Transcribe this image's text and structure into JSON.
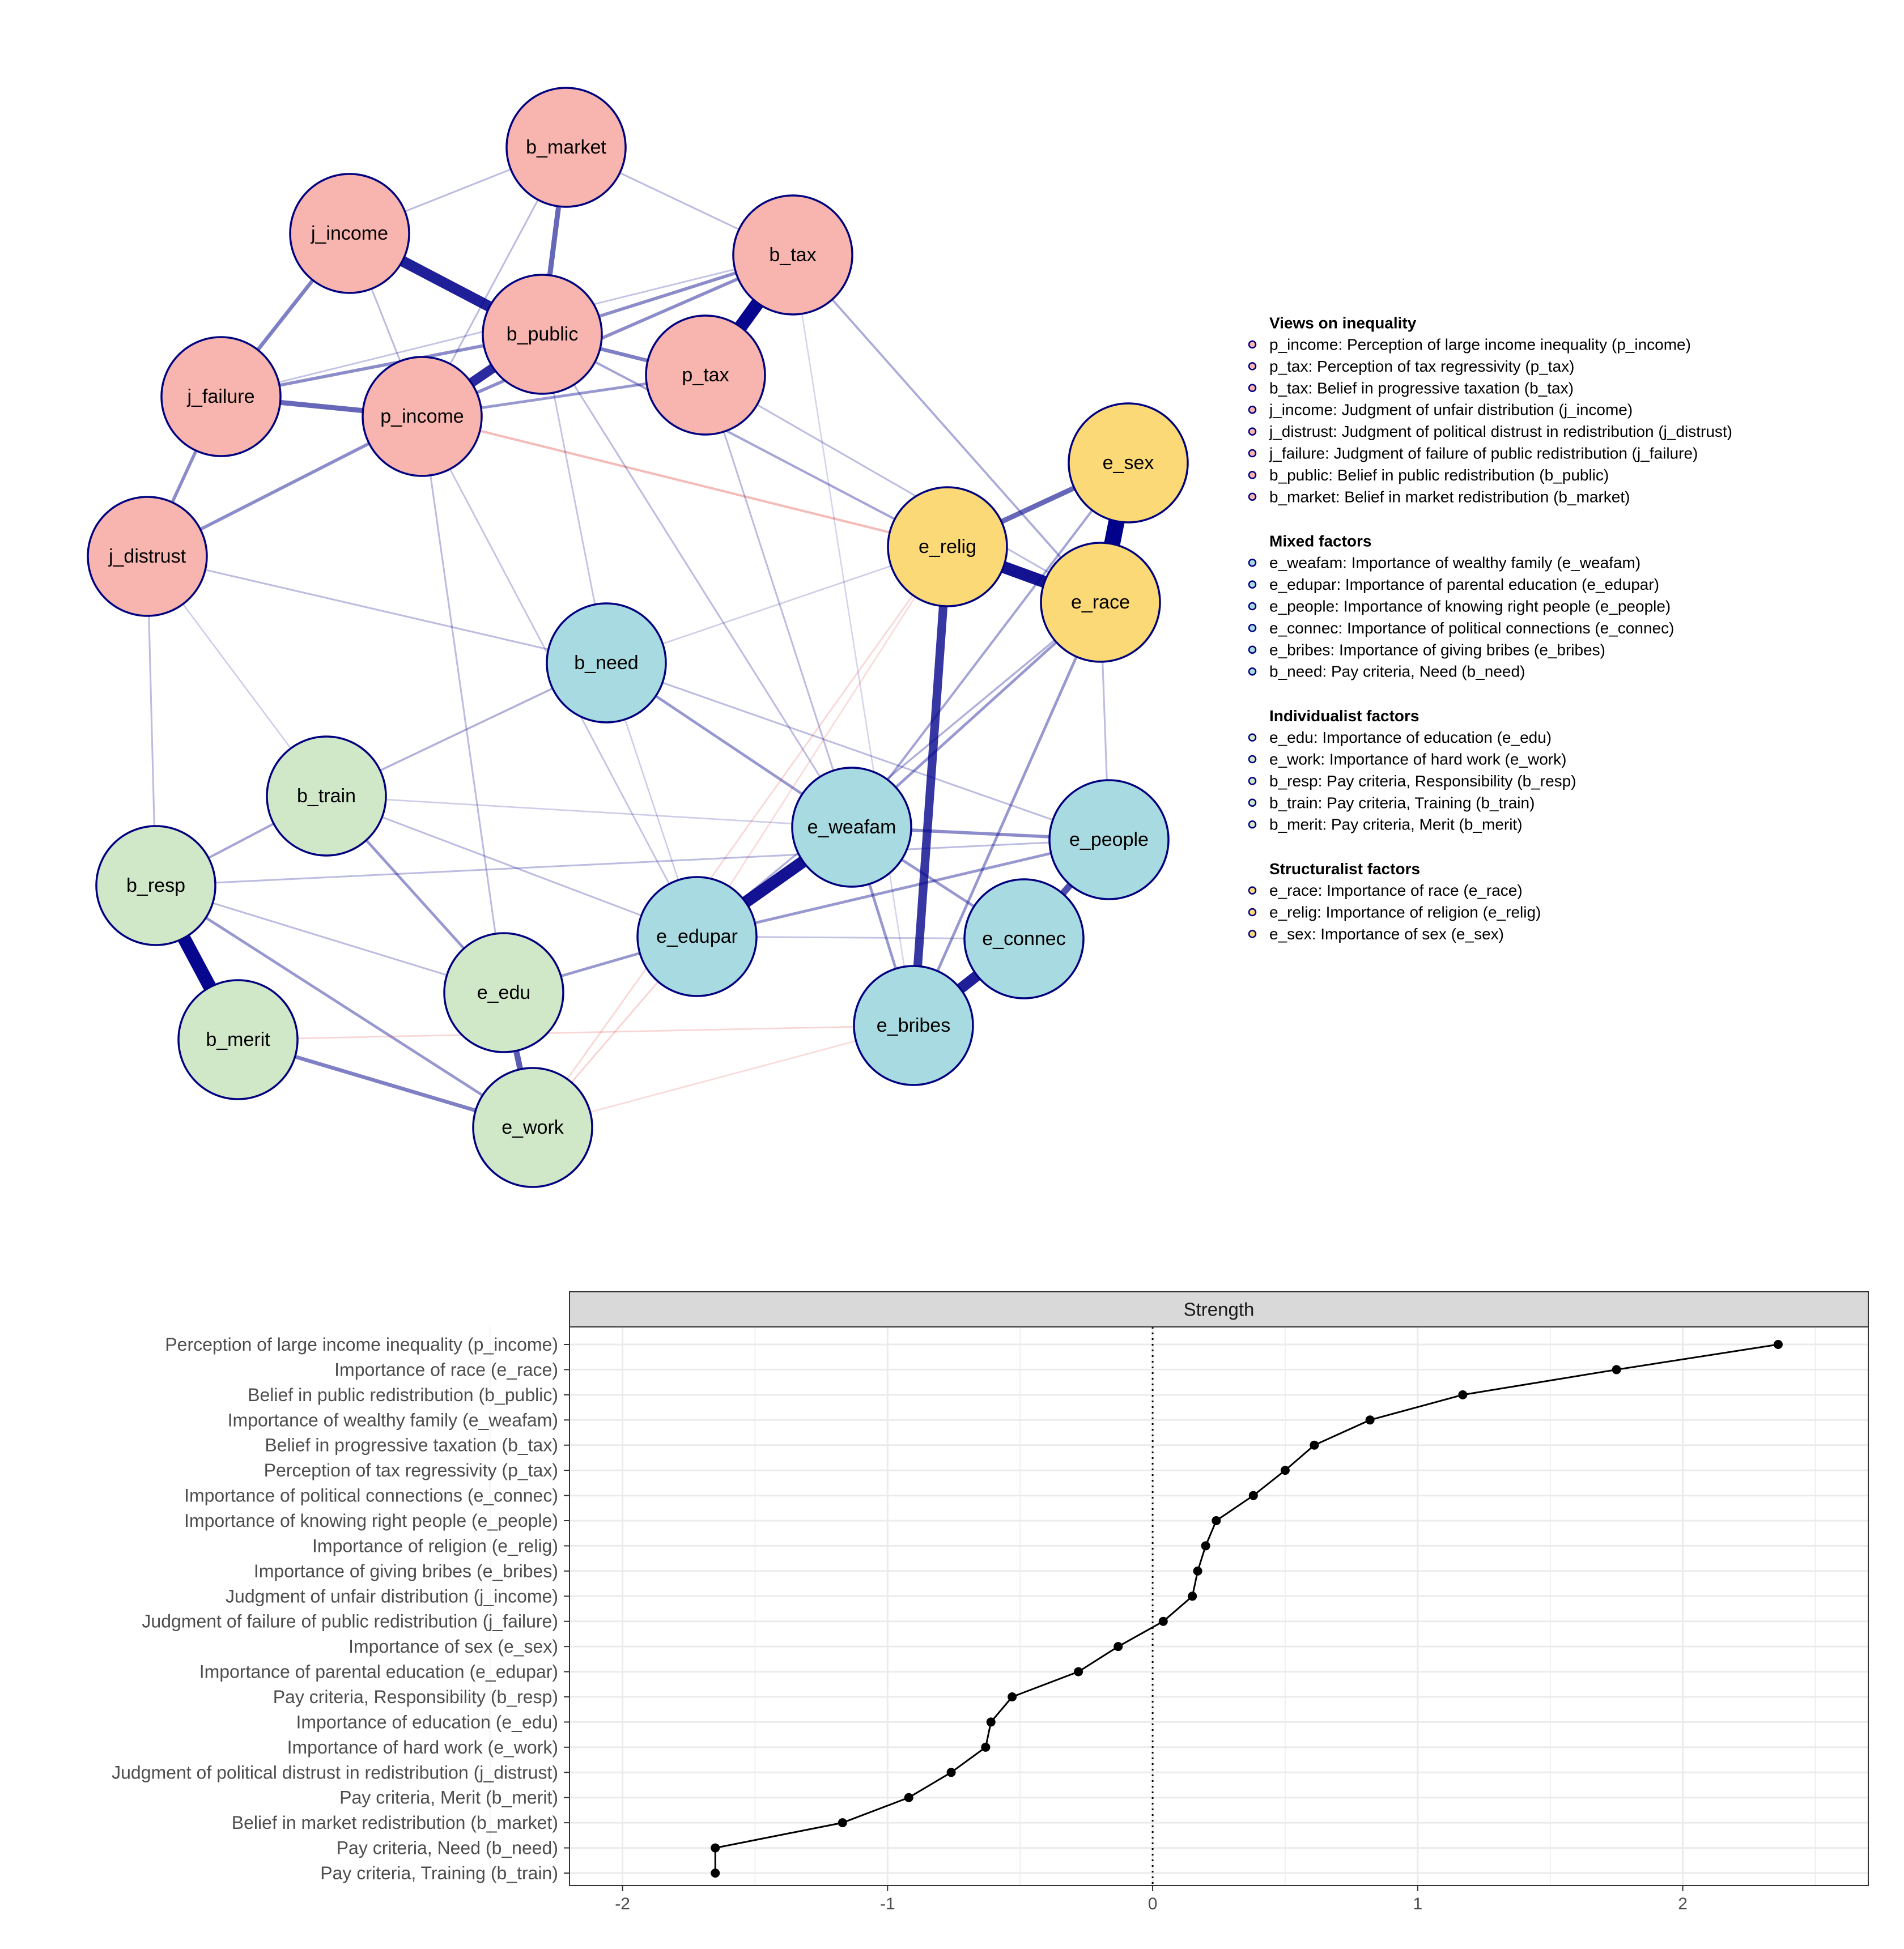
{
  "network": {
    "groups": [
      {
        "title": "Views on inequality",
        "color": "#F8B4AE",
        "items": [
          "p_income: Perception of large income inequality (p_income)",
          "p_tax: Perception of tax regressivity (p_tax)",
          "b_tax: Belief in progressive taxation (b_tax)",
          "j_income: Judgment of unfair distribution (j_income)",
          "j_distrust: Judgment of political distrust in redistribution (j_distrust)",
          "j_failure: Judgment of failure of public redistribution (j_failure)",
          "b_public: Belief in public redistribution (b_public)",
          "b_market: Belief in market redistribution (b_market)"
        ]
      },
      {
        "title": "Mixed factors",
        "color": "#A8DAE1",
        "items": [
          "e_weafam: Importance of wealthy family (e_weafam)",
          "e_edupar: Importance of parental education (e_edupar)",
          "e_people: Importance of knowing right people (e_people)",
          "e_connec: Importance of political connections (e_connec)",
          "e_bribes: Importance of giving bribes (e_bribes)",
          "b_need: Pay criteria, Need (b_need)"
        ]
      },
      {
        "title": "Individualist factors",
        "color": "#D0E8C8",
        "items": [
          "e_edu: Importance of education (e_edu)",
          "e_work: Importance of hard work (e_work)",
          "b_resp: Pay criteria, Responsibility (b_resp)",
          "b_train: Pay criteria, Training (b_train)",
          "b_merit: Pay criteria, Merit (b_merit)"
        ]
      },
      {
        "title": "Structuralist factors",
        "color": "#FBD976",
        "items": [
          "e_race: Importance of race (e_race)",
          "e_relig: Importance of religion (e_relig)",
          "e_sex: Importance of sex (e_sex)"
        ]
      }
    ],
    "nodes": [
      {
        "id": "b_market",
        "group": 0
      },
      {
        "id": "j_income",
        "group": 0
      },
      {
        "id": "b_tax",
        "group": 0
      },
      {
        "id": "b_public",
        "group": 0
      },
      {
        "id": "p_tax",
        "group": 0
      },
      {
        "id": "j_failure",
        "group": 0
      },
      {
        "id": "p_income",
        "group": 0
      },
      {
        "id": "j_distrust",
        "group": 0
      },
      {
        "id": "e_sex",
        "group": 3
      },
      {
        "id": "e_relig",
        "group": 3
      },
      {
        "id": "e_race",
        "group": 3
      },
      {
        "id": "b_need",
        "group": 1
      },
      {
        "id": "b_train",
        "group": 2
      },
      {
        "id": "e_weafam",
        "group": 1
      },
      {
        "id": "e_people",
        "group": 1
      },
      {
        "id": "b_resp",
        "group": 2
      },
      {
        "id": "e_edupar",
        "group": 1
      },
      {
        "id": "e_connec",
        "group": 1
      },
      {
        "id": "e_edu",
        "group": 2
      },
      {
        "id": "b_merit",
        "group": 2
      },
      {
        "id": "e_bribes",
        "group": 1
      },
      {
        "id": "e_work",
        "group": 2
      }
    ],
    "edges": [
      {
        "a": "j_income",
        "b": "b_public",
        "w": 0.8,
        "sign": "pos"
      },
      {
        "a": "b_public",
        "b": "p_income",
        "w": 0.75,
        "sign": "pos"
      },
      {
        "a": "b_tax",
        "b": "p_tax",
        "w": 0.9,
        "sign": "pos"
      },
      {
        "a": "e_sex",
        "b": "e_race",
        "w": 1.0,
        "sign": "pos"
      },
      {
        "a": "e_relig",
        "b": "e_race",
        "w": 0.85,
        "sign": "pos"
      },
      {
        "a": "e_relig",
        "b": "e_sex",
        "w": 0.5,
        "sign": "pos"
      },
      {
        "a": "e_relig",
        "b": "e_bribes",
        "w": 0.7,
        "sign": "pos"
      },
      {
        "a": "e_weafam",
        "b": "e_edupar",
        "w": 0.85,
        "sign": "pos"
      },
      {
        "a": "b_resp",
        "b": "b_merit",
        "w": 0.9,
        "sign": "pos"
      },
      {
        "a": "e_edu",
        "b": "e_work",
        "w": 0.55,
        "sign": "pos"
      },
      {
        "a": "e_connec",
        "b": "e_bribes",
        "w": 0.8,
        "sign": "pos"
      },
      {
        "a": "e_people",
        "b": "e_connec",
        "w": 0.6,
        "sign": "pos"
      },
      {
        "a": "b_market",
        "b": "b_public",
        "w": 0.5,
        "sign": "pos"
      },
      {
        "a": "j_failure",
        "b": "p_income",
        "w": 0.5,
        "sign": "pos"
      },
      {
        "a": "j_failure",
        "b": "b_public",
        "w": 0.35,
        "sign": "pos"
      },
      {
        "a": "b_public",
        "b": "p_tax",
        "w": 0.4,
        "sign": "pos"
      },
      {
        "a": "b_public",
        "b": "b_tax",
        "w": 0.35,
        "sign": "pos"
      },
      {
        "a": "j_income",
        "b": "j_failure",
        "w": 0.4,
        "sign": "pos"
      },
      {
        "a": "j_failure",
        "b": "j_distrust",
        "w": 0.35,
        "sign": "pos"
      },
      {
        "a": "j_distrust",
        "b": "p_income",
        "w": 0.35,
        "sign": "pos"
      },
      {
        "a": "p_income",
        "b": "b_tax",
        "w": 0.35,
        "sign": "pos"
      },
      {
        "a": "p_income",
        "b": "p_tax",
        "w": 0.3,
        "sign": "pos"
      },
      {
        "a": "b_merit",
        "b": "e_work",
        "w": 0.4,
        "sign": "pos"
      },
      {
        "a": "b_resp",
        "b": "e_work",
        "w": 0.3,
        "sign": "pos"
      },
      {
        "a": "e_edu",
        "b": "e_edupar",
        "w": 0.3,
        "sign": "pos"
      },
      {
        "a": "e_edupar",
        "b": "e_people",
        "w": 0.3,
        "sign": "pos"
      },
      {
        "a": "e_weafam",
        "b": "e_people",
        "w": 0.35,
        "sign": "pos"
      },
      {
        "a": "e_weafam",
        "b": "e_bribes",
        "w": 0.3,
        "sign": "pos"
      },
      {
        "a": "e_weafam",
        "b": "e_connec",
        "w": 0.3,
        "sign": "pos"
      },
      {
        "a": "e_race",
        "b": "e_bribes",
        "w": 0.3,
        "sign": "pos"
      },
      {
        "a": "p_income",
        "b": "e_relig",
        "w": 0.25,
        "sign": "neg"
      },
      {
        "a": "b_public",
        "b": "e_relig",
        "w": 0.25,
        "sign": "pos"
      },
      {
        "a": "b_tax",
        "b": "e_race",
        "w": 0.22,
        "sign": "pos"
      },
      {
        "a": "j_income",
        "b": "b_market",
        "w": 0.15,
        "sign": "pos"
      },
      {
        "a": "b_market",
        "b": "b_tax",
        "w": 0.15,
        "sign": "pos"
      },
      {
        "a": "b_market",
        "b": "p_income",
        "w": 0.15,
        "sign": "pos"
      },
      {
        "a": "j_income",
        "b": "p_income",
        "w": 0.15,
        "sign": "pos"
      },
      {
        "a": "j_failure",
        "b": "b_tax",
        "w": 0.12,
        "sign": "pos"
      },
      {
        "a": "p_tax",
        "b": "e_race",
        "w": 0.15,
        "sign": "pos"
      },
      {
        "a": "j_distrust",
        "b": "b_need",
        "w": 0.15,
        "sign": "pos"
      },
      {
        "a": "j_distrust",
        "b": "b_resp",
        "w": 0.15,
        "sign": "pos"
      },
      {
        "a": "j_distrust",
        "b": "b_train",
        "w": 0.08,
        "sign": "pos"
      },
      {
        "a": "p_income",
        "b": "e_edu",
        "w": 0.15,
        "sign": "pos"
      },
      {
        "a": "p_income",
        "b": "e_edupar",
        "w": 0.12,
        "sign": "pos"
      },
      {
        "a": "b_public",
        "b": "e_weafam",
        "w": 0.15,
        "sign": "pos"
      },
      {
        "a": "b_public",
        "b": "b_need",
        "w": 0.12,
        "sign": "pos"
      },
      {
        "a": "b_tax",
        "b": "e_bribes",
        "w": 0.05,
        "sign": "pos"
      },
      {
        "a": "p_tax",
        "b": "e_weafam",
        "w": 0.15,
        "sign": "pos"
      },
      {
        "a": "e_relig",
        "b": "b_need",
        "w": 0.08,
        "sign": "pos"
      },
      {
        "a": "e_relig",
        "b": "e_edupar",
        "w": 0.08,
        "sign": "neg"
      },
      {
        "a": "e_relig",
        "b": "e_work",
        "w": 0.1,
        "sign": "neg"
      },
      {
        "a": "e_race",
        "b": "e_weafam",
        "w": 0.3,
        "sign": "pos"
      },
      {
        "a": "e_race",
        "b": "e_edupar",
        "w": 0.2,
        "sign": "pos"
      },
      {
        "a": "e_race",
        "b": "e_people",
        "w": 0.15,
        "sign": "pos"
      },
      {
        "a": "b_need",
        "b": "b_train",
        "w": 0.2,
        "sign": "pos"
      },
      {
        "a": "b_need",
        "b": "e_weafam",
        "w": 0.3,
        "sign": "pos"
      },
      {
        "a": "b_need",
        "b": "e_people",
        "w": 0.15,
        "sign": "pos"
      },
      {
        "a": "b_need",
        "b": "e_edupar",
        "w": 0.08,
        "sign": "pos"
      },
      {
        "a": "b_train",
        "b": "b_resp",
        "w": 0.25,
        "sign": "pos"
      },
      {
        "a": "b_train",
        "b": "e_edu",
        "w": 0.3,
        "sign": "pos"
      },
      {
        "a": "b_train",
        "b": "e_edupar",
        "w": 0.15,
        "sign": "pos"
      },
      {
        "a": "b_train",
        "b": "e_weafam",
        "w": 0.08,
        "sign": "pos"
      },
      {
        "a": "b_resp",
        "b": "e_people",
        "w": 0.15,
        "sign": "pos"
      },
      {
        "a": "b_resp",
        "b": "e_edu",
        "w": 0.15,
        "sign": "pos"
      },
      {
        "a": "b_merit",
        "b": "e_bribes",
        "w": 0.1,
        "sign": "neg"
      },
      {
        "a": "e_work",
        "b": "e_bribes",
        "w": 0.08,
        "sign": "neg"
      },
      {
        "a": "e_edupar",
        "b": "e_connec",
        "w": 0.12,
        "sign": "pos"
      },
      {
        "a": "e_edupar",
        "b": "e_work",
        "w": 0.12,
        "sign": "neg"
      },
      {
        "a": "e_weafam",
        "b": "e_sex",
        "w": 0.25,
        "sign": "pos"
      }
    ]
  },
  "chart_data": {
    "type": "line",
    "facet_title": "Strength",
    "categories": [
      "Perception of large income inequality (p_income)",
      "Importance of race (e_race)",
      "Belief in public redistribution (b_public)",
      "Importance of wealthy family (e_weafam)",
      "Belief in progressive taxation (b_tax)",
      "Perception of tax regressivity (p_tax)",
      "Importance of political connections (e_connec)",
      "Importance of knowing right people (e_people)",
      "Importance of religion (e_relig)",
      "Importance of giving bribes (e_bribes)",
      "Judgment of unfair distribution (j_income)",
      "Judgment of failure of public redistribution (j_failure)",
      "Importance of sex (e_sex)",
      "Importance of parental education (e_edupar)",
      "Pay criteria, Responsibility (b_resp)",
      "Importance of education (e_edu)",
      "Importance of hard work (e_work)",
      "Judgment of political distrust in redistribution (j_distrust)",
      "Pay criteria, Merit (b_merit)",
      "Belief in market redistribution (b_market)",
      "Pay criteria, Need (b_need)",
      "Pay criteria, Training (b_train)"
    ],
    "values": [
      2.36,
      1.75,
      1.17,
      0.82,
      0.61,
      0.5,
      0.38,
      0.24,
      0.2,
      0.17,
      0.15,
      0.04,
      -0.13,
      -0.28,
      -0.53,
      -0.61,
      -0.63,
      -0.76,
      -0.92,
      -1.17,
      -1.65,
      -1.65
    ],
    "xlim": [
      -2.2,
      2.7
    ],
    "xticks": [
      -2,
      -1,
      0,
      1,
      2
    ],
    "reference_line": 0,
    "grid": true,
    "colors": {
      "line": "#000000",
      "strip": "#d9d9d9",
      "grid": "#ebebeb",
      "reference": "#000000"
    }
  },
  "colors": {
    "edge_pos": "#00008B",
    "edge_neg": "#E0403A",
    "node_border": "#000080"
  }
}
